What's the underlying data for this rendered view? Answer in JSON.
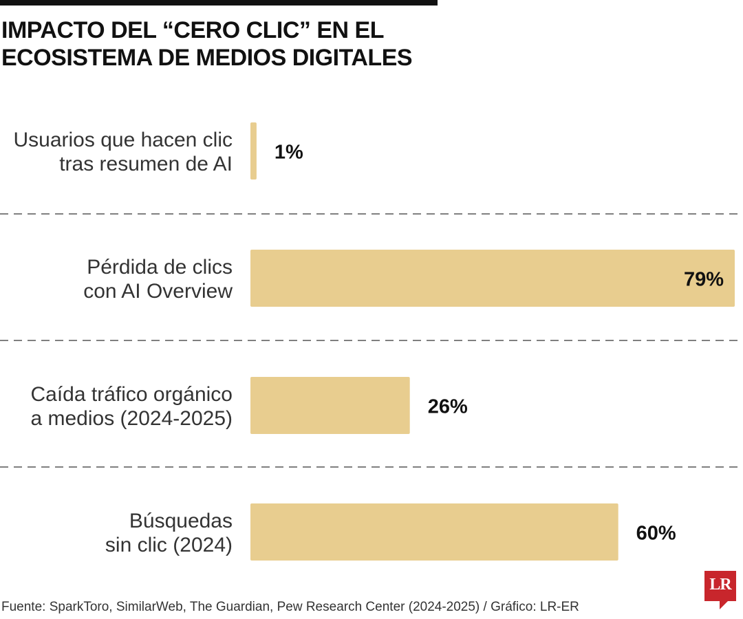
{
  "header": {
    "title_line1": "IMPACTO DEL “CERO CLIC” EN EL",
    "title_line2": "ECOSISTEMA DE MEDIOS DIGITALES"
  },
  "chart_data": {
    "type": "bar",
    "orientation": "horizontal",
    "title": "IMPACTO DEL “CERO CLIC” EN EL ECOSISTEMA DE MEDIOS DIGITALES",
    "categories": [
      [
        "Usuarios que hacen clic",
        "tras resumen de AI"
      ],
      [
        "Pérdida de clics",
        "con AI Overview"
      ],
      [
        "Caída tráfico orgánico",
        "a medios (2024-2025)"
      ],
      [
        "Búsquedas",
        "sin clic (2024)"
      ]
    ],
    "values": [
      1,
      79,
      26,
      60
    ],
    "value_labels": [
      "1%",
      "79%",
      "26%",
      "60%"
    ],
    "unit": "%",
    "xlim": [
      0,
      79
    ],
    "bar_color": "#e8cd8f",
    "grid": false,
    "dividers": "dashed"
  },
  "footer": {
    "source": "Fuente: SparkToro, SimilarWeb, The Guardian, Pew Research Center (2024-2025) / Gráfico: LR-ER",
    "logo_text": "LR",
    "logo_color": "#c8262c"
  }
}
